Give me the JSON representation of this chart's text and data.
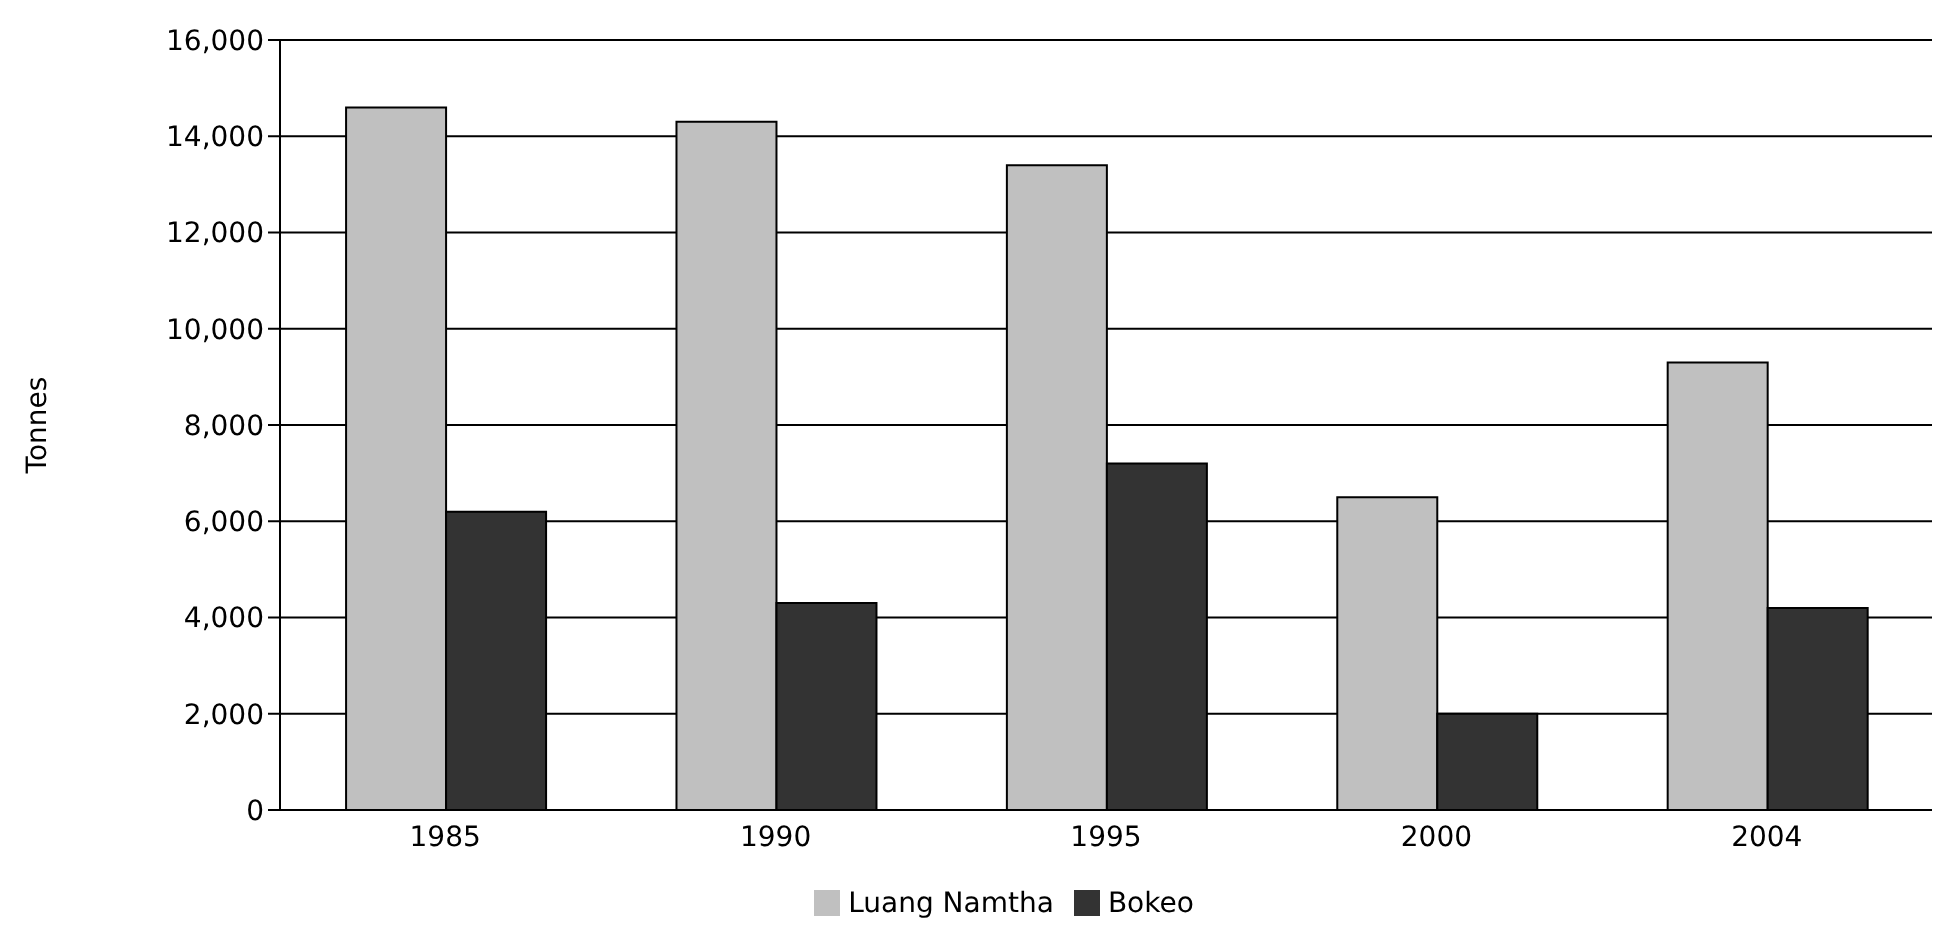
{
  "chart_data": {
    "type": "bar",
    "ylabel": "Tonnes",
    "categories": [
      "1985",
      "1990",
      "1995",
      "2000",
      "2004"
    ],
    "series": [
      {
        "name": "Luang Namtha",
        "color": "#c0c0c0",
        "values": [
          14600,
          14300,
          13400,
          6500,
          9300
        ]
      },
      {
        "name": "Bokeo",
        "color": "#333333",
        "values": [
          6200,
          4300,
          7200,
          2000,
          4200
        ]
      }
    ],
    "ylim": [
      0,
      16000
    ],
    "yticks": [
      0,
      {
        "value": 2000,
        "label": "2,000"
      },
      {
        "value": 4000,
        "label": "4,000"
      },
      {
        "value": 6000,
        "label": "6,000"
      },
      {
        "value": 8000,
        "label": "8,000"
      },
      {
        "value": 10000,
        "label": "10,000"
      },
      {
        "value": 12000,
        "label": "12,000"
      },
      {
        "value": 14000,
        "label": "14,000"
      },
      {
        "value": 16000,
        "label": "16,000"
      }
    ],
    "grid": "y",
    "legend": "bottom"
  }
}
